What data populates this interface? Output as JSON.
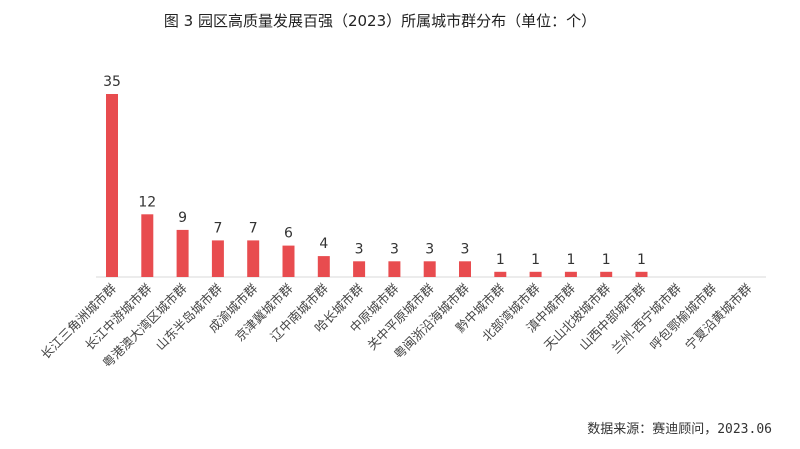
{
  "chart_data": {
    "type": "bar",
    "title": "图 3 园区高质量发展百强（2023）所属城市群分布（单位：个）",
    "categories": [
      "长江三角洲城市群",
      "长江中游城市群",
      "粤港澳大湾区城市群",
      "山东半岛城市群",
      "成渝城市群",
      "京津冀城市群",
      "辽中南城市群",
      "哈长城市群",
      "中原城市群",
      "关中平原城市群",
      "粤闽浙沿海城市群",
      "黔中城市群",
      "北部湾城市群",
      "滇中城市群",
      "天山北坡城市群",
      "山西中部城市群",
      "兰州-西宁城市群",
      "呼包鄂榆城市群",
      "宁夏沿黄城市群"
    ],
    "values": [
      35,
      12,
      9,
      7,
      7,
      6,
      4,
      3,
      3,
      3,
      3,
      1,
      1,
      1,
      1,
      1,
      0,
      0,
      0
    ],
    "data_labels": [
      "35",
      "12",
      "9",
      "7",
      "7",
      "6",
      "4",
      "3",
      "3",
      "3",
      "3",
      "1",
      "1",
      "1",
      "1",
      "1",
      "",
      "",
      ""
    ],
    "ylim": [
      0,
      35
    ],
    "grid": false,
    "bar_color": "#e84c4f"
  },
  "source_note": "数据来源：赛迪顾问，2023.06"
}
